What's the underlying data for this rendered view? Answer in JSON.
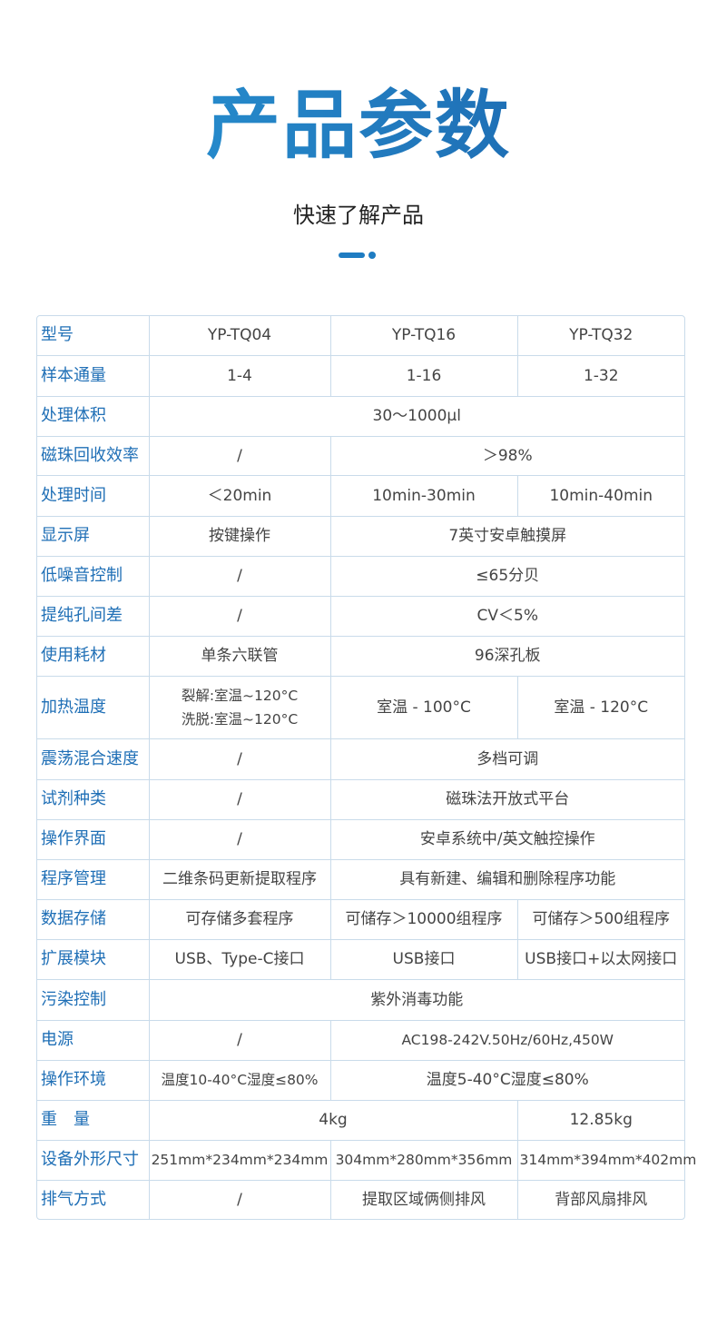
{
  "header": {
    "title": "产品参数",
    "subtitle": "快速了解产品",
    "accent_color": "#1f7cc2"
  },
  "table": {
    "rows": [
      {
        "label": "型号",
        "cells": [
          {
            "text": "YP-TQ04"
          },
          {
            "text": "YP-TQ16"
          },
          {
            "text": "YP-TQ32"
          }
        ]
      },
      {
        "label": "样本通量",
        "cells": [
          {
            "text": "1-4"
          },
          {
            "text": "1-16"
          },
          {
            "text": "1-32"
          }
        ]
      },
      {
        "label": "处理体积",
        "cells": [
          {
            "text": "30～1000μl",
            "span": 3
          }
        ]
      },
      {
        "label": "磁珠回收效率",
        "cells": [
          {
            "text": "/"
          },
          {
            "text": "＞98%",
            "span": 2
          }
        ]
      },
      {
        "label": "处理时间",
        "cells": [
          {
            "text": "＜20min"
          },
          {
            "text": "10min-30min"
          },
          {
            "text": "10min-40min"
          }
        ]
      },
      {
        "label": "显示屏",
        "cells": [
          {
            "text": "按键操作"
          },
          {
            "text": "7英寸安卓触摸屏",
            "span": 2
          }
        ]
      },
      {
        "label": "低噪音控制",
        "cells": [
          {
            "text": "/"
          },
          {
            "text": "≤65分贝",
            "span": 2
          }
        ]
      },
      {
        "label": "提纯孔间差",
        "cells": [
          {
            "text": "/"
          },
          {
            "text": "CV＜5%",
            "span": 2
          }
        ]
      },
      {
        "label": "使用耗材",
        "cells": [
          {
            "text": "单条六联管"
          },
          {
            "text": "96深孔板",
            "span": 2
          }
        ]
      },
      {
        "label": "加热温度",
        "cells": [
          {
            "text": "裂解:室温~120°C\n洗脱:室温~120°C"
          },
          {
            "text": "室温 - 100°C"
          },
          {
            "text": "室温 - 120°C"
          }
        ]
      },
      {
        "label": "震荡混合速度",
        "cells": [
          {
            "text": "/"
          },
          {
            "text": "多档可调",
            "span": 2
          }
        ]
      },
      {
        "label": "试剂种类",
        "cells": [
          {
            "text": "/"
          },
          {
            "text": "磁珠法开放式平台",
            "span": 2
          }
        ]
      },
      {
        "label": "操作界面",
        "cells": [
          {
            "text": "/"
          },
          {
            "text": "安卓系统中/英文触控操作",
            "span": 2
          }
        ]
      },
      {
        "label": "程序管理",
        "cells": [
          {
            "text": "二维条码更新提取程序"
          },
          {
            "text": "具有新建、编辑和删除程序功能",
            "span": 2
          }
        ]
      },
      {
        "label": "数据存储",
        "cells": [
          {
            "text": "可存储多套程序"
          },
          {
            "text": "可储存＞10000组程序"
          },
          {
            "text": "可储存＞500组程序"
          }
        ]
      },
      {
        "label": "扩展模块",
        "cells": [
          {
            "text": "USB、Type-C接口"
          },
          {
            "text": "USB接口"
          },
          {
            "text": "USB接口+以太网接口"
          }
        ]
      },
      {
        "label": "污染控制",
        "cells": [
          {
            "text": "紫外消毒功能",
            "span": 3
          }
        ]
      },
      {
        "label": "电源",
        "cells": [
          {
            "text": "/"
          },
          {
            "text": "AC198-242V.50Hz/60Hz,450W",
            "span": 2
          }
        ]
      },
      {
        "label": "操作环境",
        "cells": [
          {
            "text": "温度10-40°C湿度≤80%"
          },
          {
            "text": "温度5-40°C湿度≤80%",
            "span": 2
          }
        ]
      },
      {
        "label": "重　量",
        "cells": [
          {
            "text": "4kg",
            "span": 2
          },
          {
            "text": "12.85kg"
          }
        ]
      },
      {
        "label": "设备外形尺寸",
        "cells": [
          {
            "text": "251mm*234mm*234mm"
          },
          {
            "text": "304mm*280mm*356mm"
          },
          {
            "text": "314mm*394mm*402mm"
          }
        ]
      },
      {
        "label": "排气方式",
        "cells": [
          {
            "text": "/"
          },
          {
            "text": "提取区域俩侧排风"
          },
          {
            "text": "背部风扇排风"
          }
        ]
      }
    ]
  }
}
